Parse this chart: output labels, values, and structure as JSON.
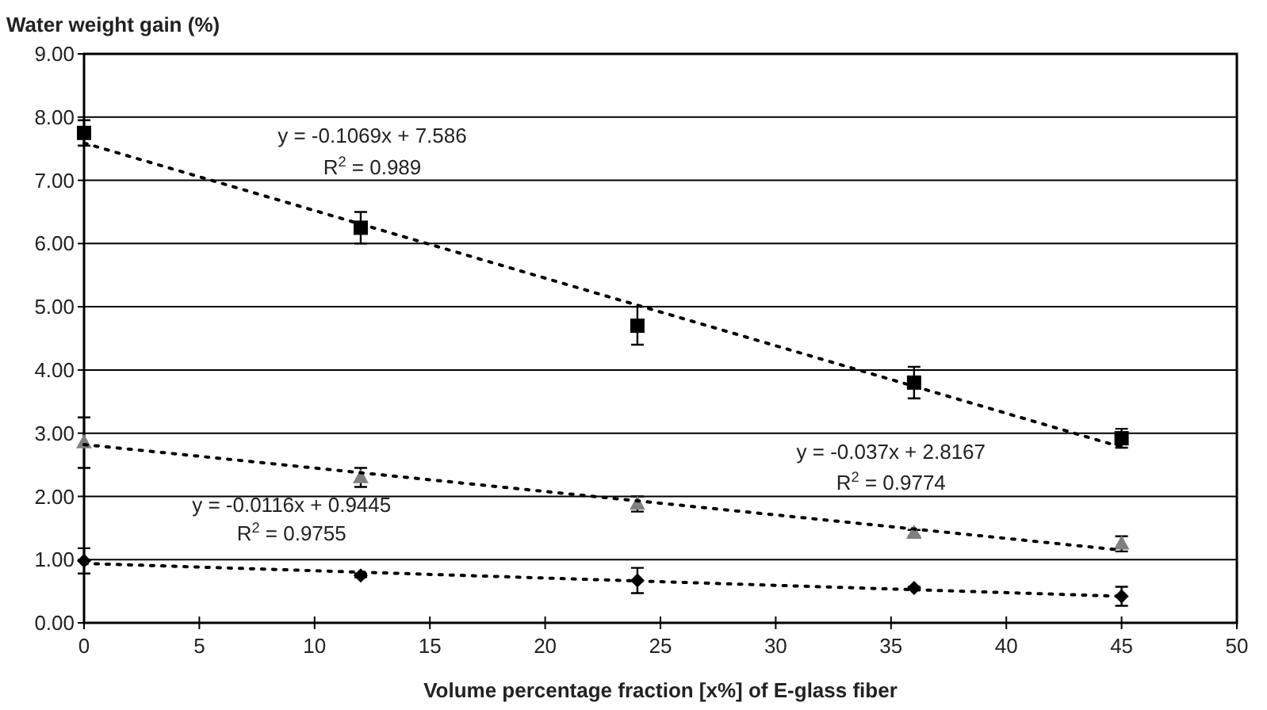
{
  "chart_data": {
    "type": "scatter",
    "ylabel": "Water weight gain (%)",
    "xlabel": "Volume percentage fraction [x%] of E-glass fiber",
    "xlim": [
      0,
      50
    ],
    "xticks": [
      0,
      5,
      10,
      15,
      20,
      25,
      30,
      35,
      40,
      45,
      50
    ],
    "ylim": [
      0,
      9
    ],
    "yticks": [
      {
        "value": 0,
        "label": "0.00"
      },
      {
        "value": 1,
        "label": "1.00"
      },
      {
        "value": 2,
        "label": "2.00"
      },
      {
        "value": 3,
        "label": "3.00"
      },
      {
        "value": 4,
        "label": "4.00"
      },
      {
        "value": 5,
        "label": "5.00"
      },
      {
        "value": 6,
        "label": "6.00"
      },
      {
        "value": 7,
        "label": "7.00"
      },
      {
        "value": 8,
        "label": "8.00"
      },
      {
        "value": 9,
        "label": "9.00"
      }
    ],
    "grid": "y",
    "series": [
      {
        "color": "#000000",
        "marker": "diamond",
        "x": [
          0,
          12,
          24,
          36,
          45
        ],
        "values": [
          0.98,
          0.75,
          0.67,
          0.55,
          0.42
        ],
        "errors": [
          0.2,
          0.03,
          0.2,
          0.02,
          0.15
        ]
      },
      {
        "color": "#808080",
        "marker": "triangle",
        "x": [
          0,
          12,
          24,
          36,
          45
        ],
        "values": [
          2.85,
          2.3,
          1.88,
          1.42,
          1.25
        ],
        "errors": [
          0.4,
          0.15,
          0.12,
          0.05,
          0.12
        ]
      },
      {
        "color": "#000000",
        "marker": "square",
        "x": [
          0,
          12,
          24,
          36,
          45
        ],
        "values": [
          7.75,
          6.25,
          4.7,
          3.8,
          2.92
        ],
        "errors": [
          0.2,
          0.25,
          0.3,
          0.25,
          0.15
        ]
      },
      {
        "type": "line",
        "color": "#000000",
        "line_style": "dotted",
        "x": [
          0,
          45
        ],
        "values": [
          0.94,
          0.42
        ]
      },
      {
        "type": "line",
        "color": "#000000",
        "line_style": "dotted",
        "x": [
          0,
          45
        ],
        "values": [
          2.82,
          1.15
        ]
      },
      {
        "type": "line",
        "color": "#000000",
        "line_style": "dotted",
        "x": [
          0,
          45
        ],
        "values": [
          7.59,
          2.78
        ]
      }
    ],
    "annotations": [
      "y = -0.1069x + 7.586",
      "R$^{2}$ = 0.989",
      "y = -0.037x + 2.8167",
      "R$^{2}$ = 0.9774",
      "y = -0.0116x + 0.9445",
      "R$^{2}$ = 0.9755"
    ]
  }
}
